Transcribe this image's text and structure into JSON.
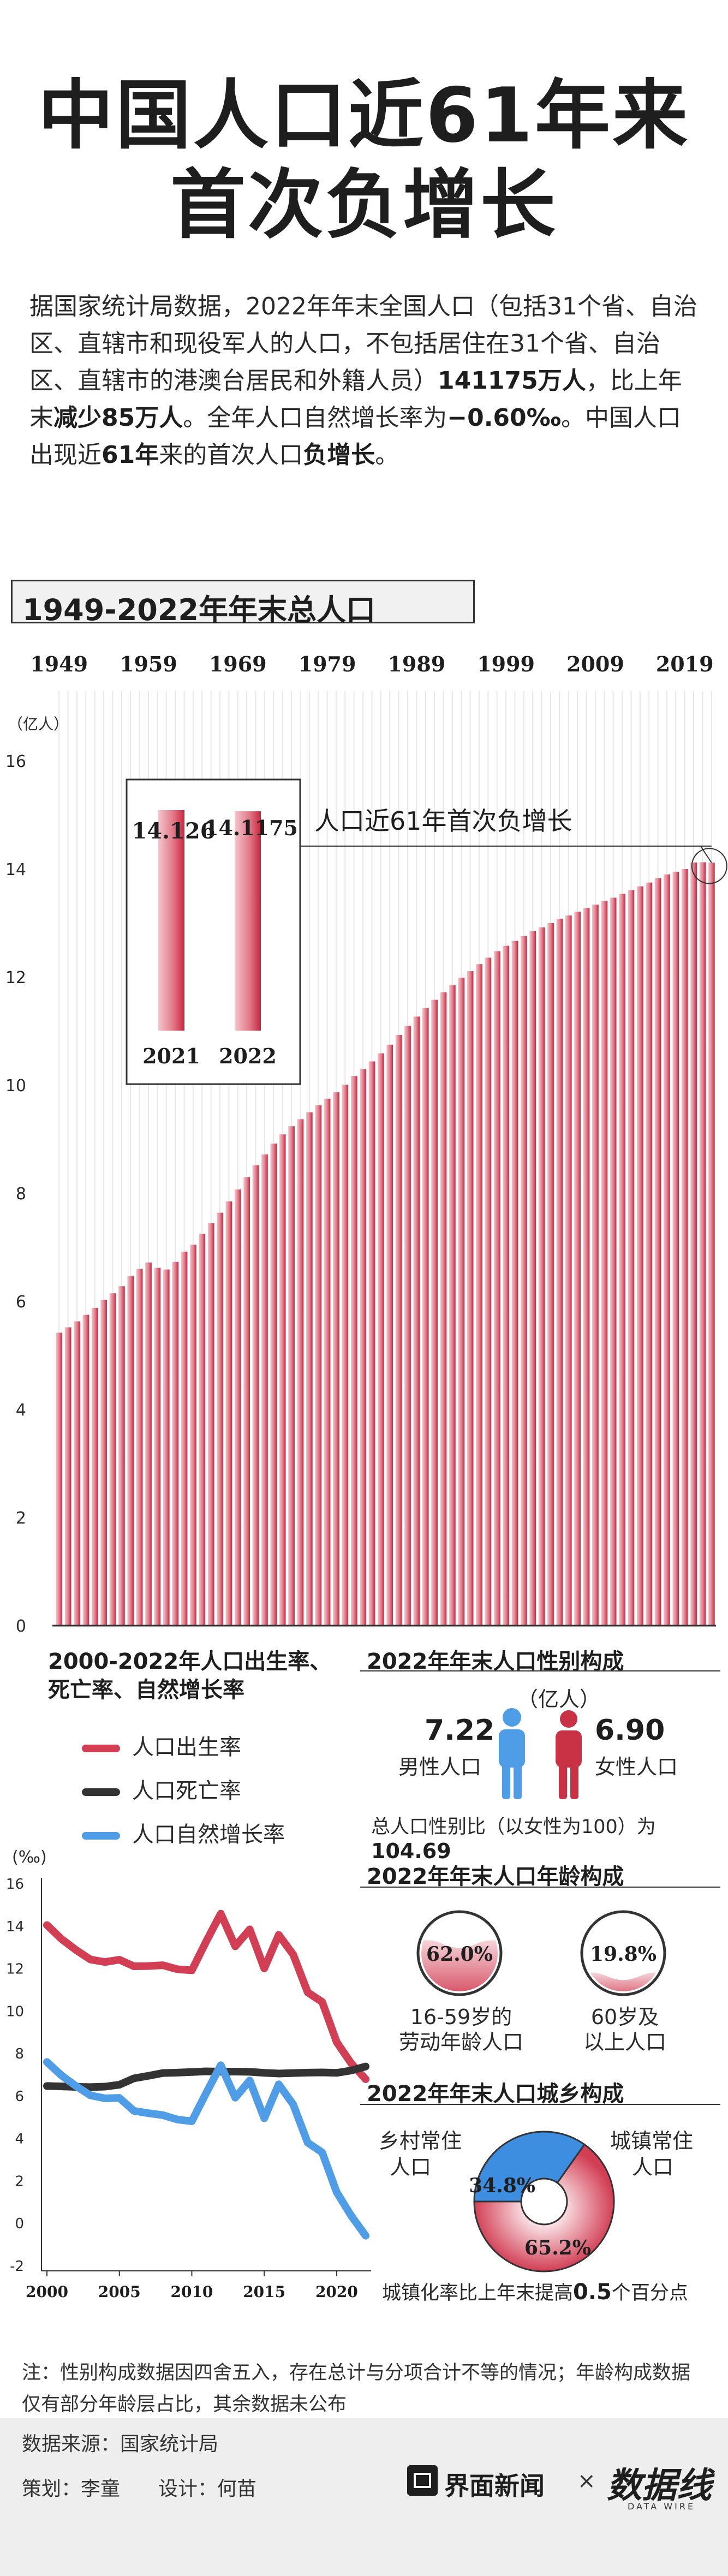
{
  "title_line1": "中国人口近61年来",
  "title_line2": "首次负增长",
  "intro": {
    "p1": "据国家统计局数据，2022年年末全国人口（包括31个省、自治区、直辖市和现役军人的人口，不包括居住在31个省、自治区、直辖市的港澳台居民和外籍人员）",
    "p2_bold": "141175万人",
    "p3": "，比上年末",
    "p4_bold": "减少85万人",
    "p5": "。全年人口自然增长率为",
    "p6_bold": "−0.60‰",
    "p7": "。中国人口出现近",
    "p8_bold": "61年",
    "p9": "来的首次人口",
    "p10_bold": "负增长",
    "p11": "。"
  },
  "section1_title": "1949-2022年年末总人口",
  "chart_data": [
    {
      "type": "bar",
      "title": "1949-2022年年末总人口",
      "unit_label": "（亿人）",
      "x_tick_labels": [
        "1949",
        "1959",
        "1969",
        "1979",
        "1989",
        "1999",
        "2009",
        "2019"
      ],
      "ylim": [
        0,
        16
      ],
      "y_ticks": [
        "0",
        "2",
        "4",
        "6",
        "8",
        "10",
        "12",
        "14",
        "16"
      ],
      "grid": true,
      "color": "#d23f55",
      "years": [
        1949,
        1950,
        1951,
        1952,
        1953,
        1954,
        1955,
        1956,
        1957,
        1958,
        1959,
        1960,
        1961,
        1962,
        1963,
        1964,
        1965,
        1966,
        1967,
        1968,
        1969,
        1970,
        1971,
        1972,
        1973,
        1974,
        1975,
        1976,
        1977,
        1978,
        1979,
        1980,
        1981,
        1982,
        1983,
        1984,
        1985,
        1986,
        1987,
        1988,
        1989,
        1990,
        1991,
        1992,
        1993,
        1994,
        1995,
        1996,
        1997,
        1998,
        1999,
        2000,
        2001,
        2002,
        2003,
        2004,
        2005,
        2006,
        2007,
        2008,
        2009,
        2010,
        2011,
        2012,
        2013,
        2014,
        2015,
        2016,
        2017,
        2018,
        2019,
        2020,
        2021,
        2022
      ],
      "values": [
        5.42,
        5.52,
        5.63,
        5.75,
        5.88,
        6.03,
        6.15,
        6.28,
        6.47,
        6.6,
        6.72,
        6.62,
        6.59,
        6.73,
        6.92,
        7.05,
        7.25,
        7.45,
        7.64,
        7.85,
        8.07,
        8.3,
        8.52,
        8.72,
        8.92,
        9.09,
        9.24,
        9.37,
        9.5,
        9.63,
        9.75,
        9.87,
        10.01,
        10.17,
        10.3,
        10.44,
        10.59,
        10.75,
        10.93,
        11.1,
        11.27,
        11.43,
        11.58,
        11.72,
        11.85,
        11.99,
        12.11,
        12.24,
        12.36,
        12.48,
        12.58,
        12.67,
        12.76,
        12.85,
        12.92,
        13.0,
        13.08,
        13.14,
        13.21,
        13.28,
        13.34,
        13.41,
        13.47,
        13.54,
        13.61,
        13.68,
        13.75,
        13.83,
        13.9,
        13.95,
        14.0,
        14.12,
        14.126,
        14.1175
      ],
      "annotation": "人口近61年首次负增长",
      "inset": {
        "labels": [
          "2021",
          "2022"
        ],
        "values": [
          14.126,
          14.1175
        ],
        "value_labels": [
          "14.126",
          "14.1175"
        ]
      }
    },
    {
      "type": "line",
      "title": "2000-2022年人口出生率、死亡率、自然增长率",
      "unit_label": "(‰)",
      "ylim": [
        -2,
        16
      ],
      "y_ticks": [
        "-2",
        "0",
        "2",
        "4",
        "6",
        "8",
        "10",
        "12",
        "14",
        "16"
      ],
      "x_ticks": [
        "2000",
        "2005",
        "2010",
        "2015",
        "2020"
      ],
      "x": [
        2000,
        2001,
        2002,
        2003,
        2004,
        2005,
        2006,
        2007,
        2008,
        2009,
        2010,
        2011,
        2012,
        2013,
        2014,
        2015,
        2016,
        2017,
        2018,
        2019,
        2020,
        2021,
        2022
      ],
      "series": [
        {
          "name": "人口出生率",
          "color": "#d23f55",
          "values": [
            14.03,
            13.38,
            12.86,
            12.41,
            12.29,
            12.4,
            12.09,
            12.1,
            12.14,
            11.95,
            11.9,
            13.27,
            14.57,
            13.03,
            13.83,
            11.99,
            13.57,
            12.64,
            10.86,
            10.41,
            8.52,
            7.52,
            6.77
          ]
        },
        {
          "name": "人口死亡率",
          "color": "#333333",
          "values": [
            6.45,
            6.43,
            6.41,
            6.4,
            6.42,
            6.51,
            6.81,
            6.93,
            7.06,
            7.08,
            7.11,
            7.14,
            7.13,
            7.13,
            7.12,
            7.07,
            7.04,
            7.06,
            7.08,
            7.09,
            7.07,
            7.18,
            7.37
          ]
        },
        {
          "name": "人口自然增长率",
          "color": "#4f9de6",
          "values": [
            7.58,
            6.95,
            6.45,
            6.01,
            5.87,
            5.89,
            5.28,
            5.17,
            5.08,
            4.87,
            4.79,
            6.13,
            7.43,
            5.9,
            6.71,
            4.93,
            6.53,
            5.58,
            3.78,
            3.32,
            1.45,
            0.34,
            -0.6
          ]
        }
      ]
    },
    {
      "type": "bar",
      "title": "2022年年末人口性别构成",
      "unit_label": "（亿人）",
      "categories": [
        "男性人口",
        "女性人口"
      ],
      "values": [
        7.22,
        6.9
      ],
      "value_labels": [
        "7.22",
        "6.90"
      ],
      "colors": [
        "#4f9de6",
        "#c93244"
      ],
      "note": "总人口性别比（以女性为100）为",
      "note_value": "104.69"
    },
    {
      "type": "pie",
      "title": "2022年年末人口年龄构成",
      "categories": [
        "16-59岁的劳动年龄人口",
        "60岁及以上人口"
      ],
      "values": [
        62.0,
        19.8
      ],
      "value_labels": [
        "62.0%",
        "19.8%"
      ]
    },
    {
      "type": "pie",
      "title": "2022年年末人口城乡构成",
      "categories": [
        "乡村常住人口",
        "城镇常住人口"
      ],
      "values": [
        34.8,
        65.2
      ],
      "value_labels": [
        "34.8%",
        "65.2%"
      ],
      "colors": [
        "#3d8ee0",
        "#d23f55"
      ],
      "note": "城镇化率比上年末提高",
      "note_value": "0.5",
      "note_unit": "个百分点"
    }
  ],
  "age_labels": {
    "a_line1": "16-59岁的",
    "a_line2": "劳动年龄人口",
    "b_line1": "60岁及",
    "b_line2": "以上人口"
  },
  "line_title_1": "2000-2022年人口出生率、",
  "line_title_2": "死亡率、自然增长率",
  "rural_label_1": "乡村常住",
  "rural_label_2": "人口",
  "urban_label_1": "城镇常住",
  "urban_label_2": "人口",
  "note": "注：性别构成数据因四舍五入，存在总计与分项合计不等的情况；年龄构成数据仅有部分年龄层占比，其余数据未公布",
  "footer": {
    "source": "数据来源：国家统计局",
    "credits_plan": "策划：李童",
    "credits_design": "设计：何苗",
    "logo1": "界面新闻",
    "times": "×",
    "logo2": "数据线",
    "logo2_sub": "DATA WIRE"
  },
  "colors": {
    "red": "#d23f55",
    "dark": "#333333",
    "blue": "#4f9de6",
    "text": "#1e1e1e"
  }
}
